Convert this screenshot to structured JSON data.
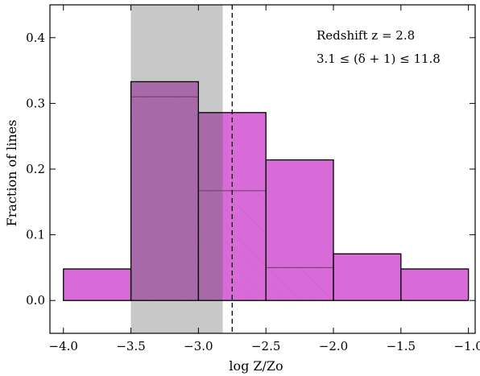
{
  "chart_data": {
    "type": "bar",
    "xlabel": "log Z/Zo",
    "ylabel": "Fraction of lines",
    "xlim": [
      -4.1,
      -0.95
    ],
    "ylim": [
      -0.05,
      0.45
    ],
    "x_ticks": [
      -4.0,
      -3.5,
      -3.0,
      -2.5,
      -2.0,
      -1.5,
      -1.0
    ],
    "x_tick_labels": [
      "−4.0",
      "−3.5",
      "−3.0",
      "−2.5",
      "−2.0",
      "−1.5",
      "−1.0"
    ],
    "y_ticks": [
      0.0,
      0.1,
      0.2,
      0.3,
      0.4
    ],
    "y_tick_labels": [
      "0.0",
      "0.1",
      "0.2",
      "0.3",
      "0.4"
    ],
    "grid": false,
    "bins": [
      {
        "left": -4.0,
        "right": -3.5,
        "value": 0.048
      },
      {
        "left": -3.5,
        "right": -3.0,
        "value": 0.333
      },
      {
        "left": -3.0,
        "right": -2.5,
        "value": 0.286
      },
      {
        "left": -2.5,
        "right": -2.0,
        "value": 0.214
      },
      {
        "left": -2.0,
        "right": -1.5,
        "value": 0.071
      },
      {
        "left": -1.5,
        "right": -1.0,
        "value": 0.048
      }
    ],
    "secondary_bins": [
      {
        "left": -3.5,
        "right": -3.0,
        "value": 0.31
      },
      {
        "left": -3.0,
        "right": -2.5,
        "value": 0.167
      },
      {
        "left": -2.5,
        "right": -2.0,
        "value": 0.05
      }
    ],
    "shaded_region": {
      "x_start": -3.5,
      "x_end": -2.82
    },
    "vertical_line_x": -2.75,
    "annotations": [
      "Redshift z = 2.8",
      "3.1 ≤ (δ + 1) ≤ 11.8"
    ],
    "colors": {
      "bar_fill": "#d86bd8",
      "bar_edge": "#000000",
      "shade": "#c8c8c8",
      "overlap": "#a869a8"
    }
  }
}
